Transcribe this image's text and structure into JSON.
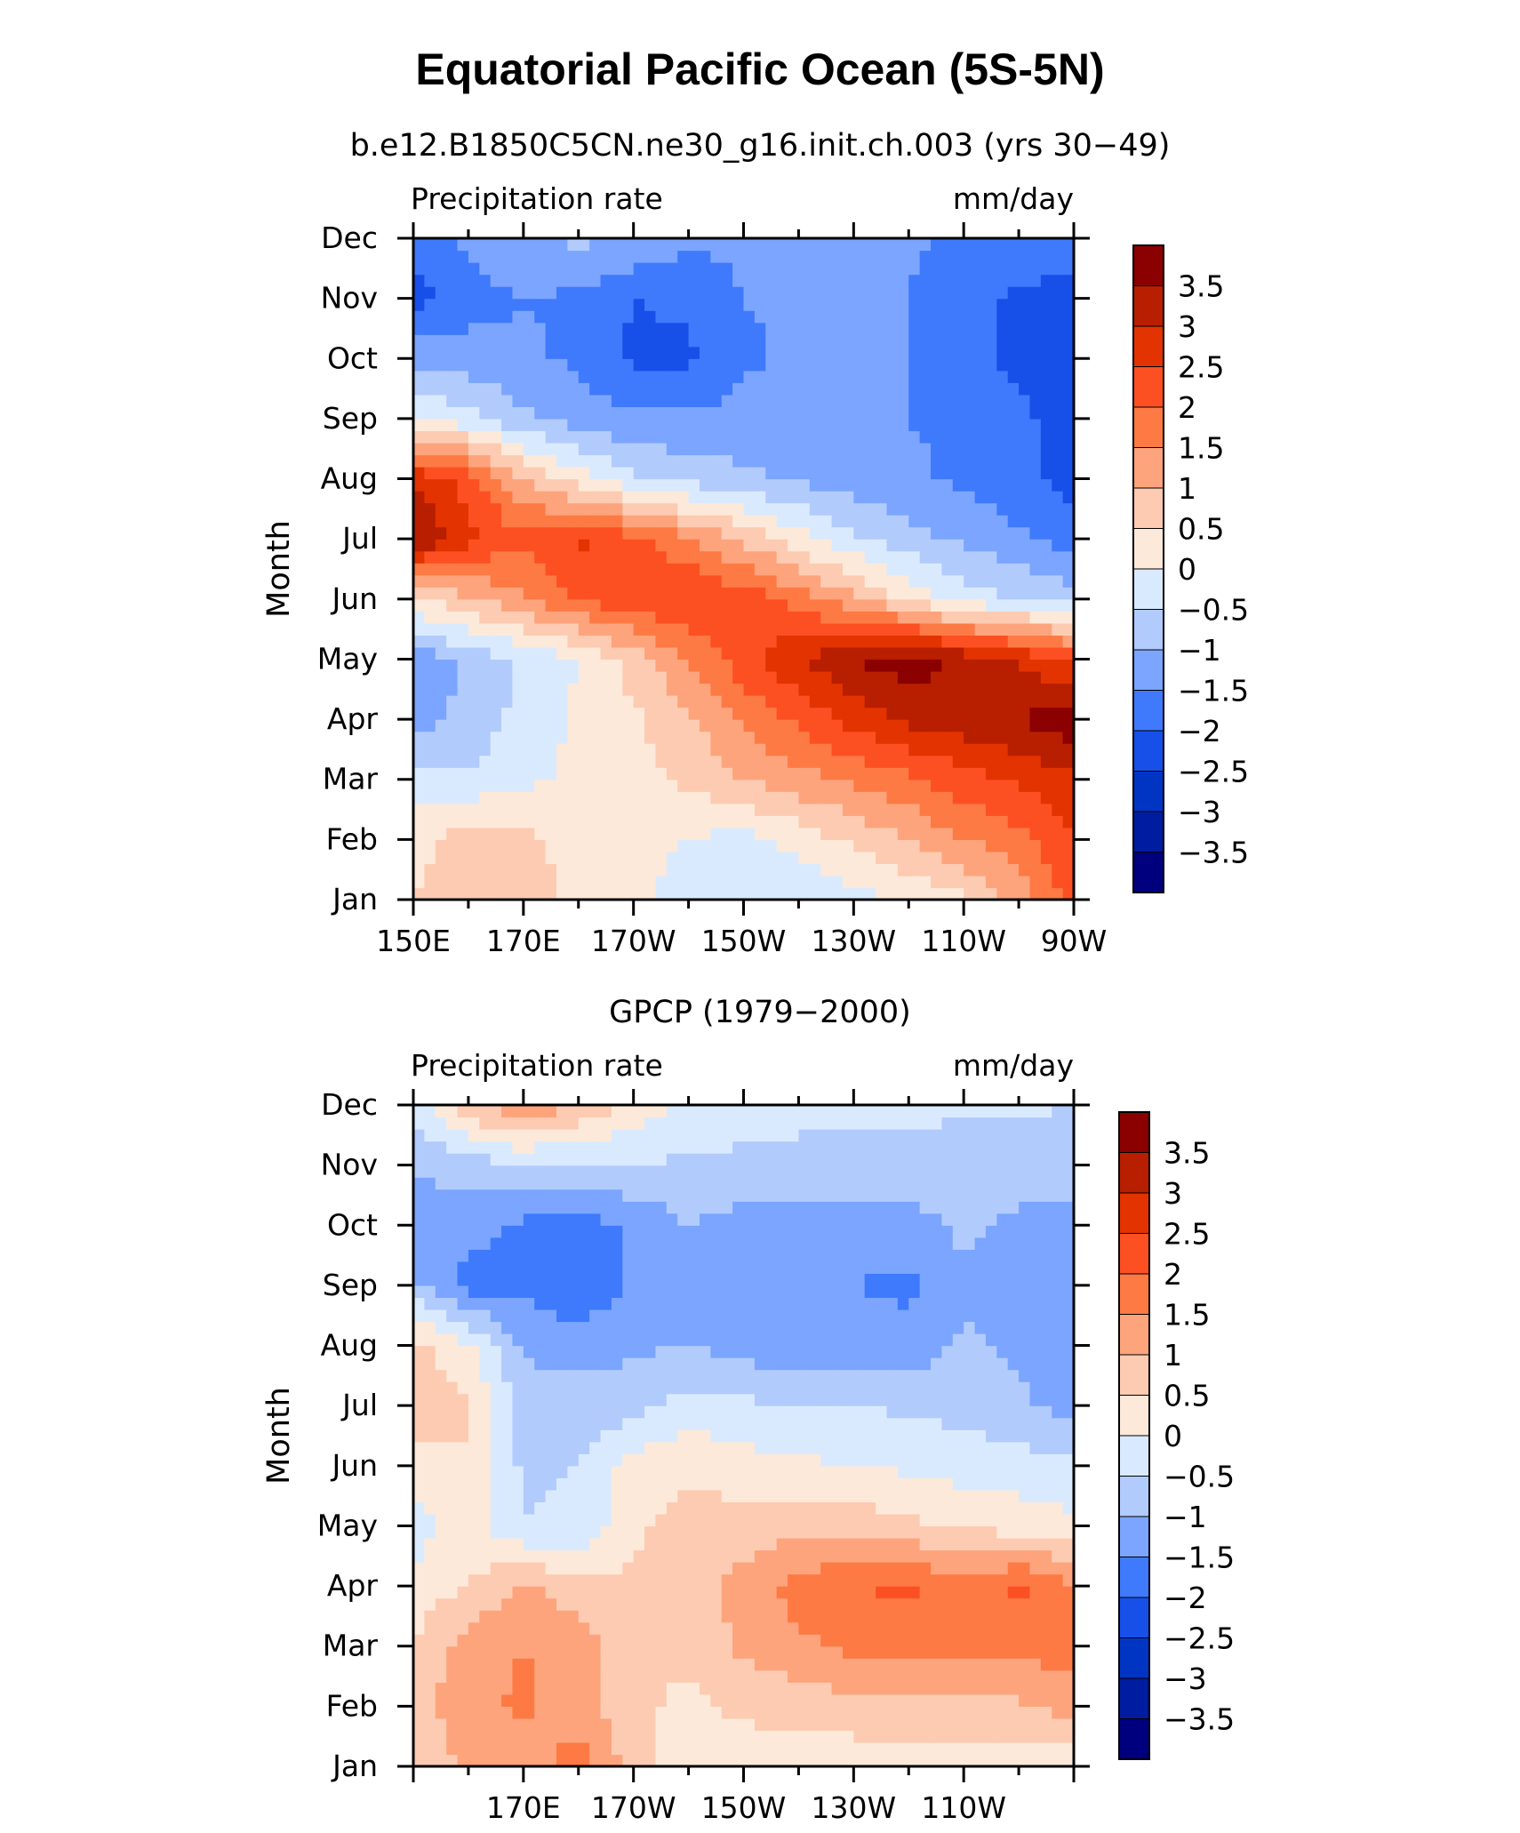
{
  "title": "Equatorial Pacific Ocean (5S-5N)",
  "colors": {
    "levels": [
      "#00007f",
      "#001ca0",
      "#0035c4",
      "#1650e8",
      "#3f7afd",
      "#7ba5fe",
      "#b2cbfd",
      "#daeafe",
      "#fde9d9",
      "#fdcbb2",
      "#fda47c",
      "#fd7a45",
      "#fd5022",
      "#e23300",
      "#b81e00",
      "#8b0000"
    ],
    "axis": "#000000"
  },
  "chart_data": [
    {
      "type": "heatmap",
      "subtitle": "b.e12.B1850C5CN.ne30_g16.init.ch.003 (yrs 30−49)",
      "left_label": "Precipitation rate",
      "right_label": "mm/day",
      "ylabel": "Month",
      "x_ticks": [
        "150E",
        "170E",
        "170W",
        "150W",
        "130W",
        "110W",
        "90W"
      ],
      "y_ticks": [
        "Jan",
        "Feb",
        "Mar",
        "Apr",
        "May",
        "Jun",
        "Jul",
        "Aug",
        "Sep",
        "Oct",
        "Nov",
        "Dec"
      ],
      "legend_labels": [
        "3.5",
        "3",
        "2.5",
        "2",
        "1.5",
        "1",
        "0.5",
        "0",
        "−0.5",
        "−1",
        "−1.5",
        "−2",
        "−2.5",
        "−3",
        "−3.5"
      ],
      "xrange": [
        150,
        270
      ],
      "x": [
        150,
        160,
        170,
        180,
        190,
        200,
        210,
        220,
        230,
        240,
        250,
        260,
        270
      ],
      "y": [
        "Jan",
        "Feb",
        "Mar",
        "Apr",
        "May",
        "Jun",
        "Jul",
        "Aug",
        "Sep",
        "Oct",
        "Nov",
        "Dec"
      ],
      "z": [
        [
          0.5,
          0.8,
          0.9,
          0.3,
          0.1,
          -0.2,
          -0.5,
          -0.4,
          -0.2,
          0.1,
          0.4,
          1.2,
          2.2
        ],
        [
          0.3,
          0.8,
          0.6,
          0.3,
          0.1,
          0.0,
          -0.2,
          0.2,
          0.6,
          1.0,
          1.5,
          1.8,
          2.5
        ],
        [
          -0.3,
          -0.4,
          -0.1,
          0.1,
          0.3,
          0.6,
          1.0,
          1.3,
          1.6,
          1.9,
          2.3,
          2.6,
          2.9
        ],
        [
          -1.2,
          -0.9,
          -0.3,
          0.1,
          0.4,
          0.9,
          1.6,
          2.1,
          2.7,
          3.1,
          3.3,
          3.5,
          3.8
        ],
        [
          -1.3,
          -0.9,
          -0.4,
          0.0,
          0.7,
          1.5,
          2.3,
          3.0,
          3.5,
          3.8,
          3.4,
          3.0,
          2.4
        ],
        [
          0.4,
          0.9,
          1.4,
          2.0,
          2.4,
          2.5,
          2.3,
          1.8,
          1.1,
          0.4,
          -0.3,
          -0.5,
          -0.8
        ],
        [
          3.6,
          2.6,
          2.1,
          2.6,
          2.2,
          1.6,
          0.9,
          0.2,
          -0.4,
          -0.8,
          -1.1,
          -1.4,
          -1.7
        ],
        [
          2.9,
          2.3,
          1.0,
          0.2,
          -0.4,
          -0.7,
          -0.9,
          -1.1,
          -1.3,
          -1.4,
          -1.6,
          -1.9,
          -2.2
        ],
        [
          0.0,
          -0.3,
          -0.9,
          -1.2,
          -1.4,
          -1.4,
          -1.3,
          -1.3,
          -1.4,
          -1.5,
          -1.6,
          -1.9,
          -2.2
        ],
        [
          -1.2,
          -1.3,
          -1.4,
          -1.6,
          -2.1,
          -2.1,
          -1.6,
          -1.4,
          -1.4,
          -1.5,
          -1.9,
          -2.1,
          -2.4
        ],
        [
          -2.2,
          -1.7,
          -1.5,
          -1.6,
          -2.0,
          -1.9,
          -1.5,
          -1.4,
          -1.4,
          -1.5,
          -1.9,
          -2.1,
          -2.3
        ],
        [
          -1.7,
          -1.4,
          -1.1,
          -0.9,
          -1.0,
          -1.4,
          -1.4,
          -1.3,
          -1.3,
          -1.4,
          -1.6,
          -1.6,
          -1.5
        ]
      ]
    },
    {
      "type": "heatmap",
      "subtitle": "GPCP (1979−2000)",
      "left_label": "Precipitation rate",
      "right_label": "mm/day",
      "ylabel": "Month",
      "x_ticks": [
        "170E",
        "170W",
        "150W",
        "130W",
        "110W"
      ],
      "y_ticks": [
        "Jan",
        "Feb",
        "Mar",
        "Apr",
        "May",
        "Jun",
        "Jul",
        "Aug",
        "Sep",
        "Oct",
        "Nov",
        "Dec"
      ],
      "legend_labels": [
        "3.5",
        "3",
        "2.5",
        "2",
        "1.5",
        "1",
        "0.5",
        "0",
        "−0.5",
        "−1",
        "−1.5",
        "−2",
        "−2.5",
        "−3",
        "−3.5"
      ],
      "xrange": [
        150,
        270
      ],
      "x": [
        150,
        160,
        170,
        180,
        190,
        200,
        210,
        220,
        230,
        240,
        250,
        260,
        270
      ],
      "y": [
        "Jan",
        "Feb",
        "Mar",
        "Apr",
        "May",
        "Jun",
        "Jul",
        "Aug",
        "Sep",
        "Oct",
        "Nov",
        "Dec"
      ],
      "z": [
        [
          0.6,
          1.1,
          1.2,
          1.8,
          0.7,
          0.2,
          0.2,
          0.2,
          0.2,
          0.1,
          0.1,
          0.1,
          0.2
        ],
        [
          0.8,
          1.3,
          1.6,
          1.2,
          0.6,
          0.4,
          0.6,
          0.7,
          0.8,
          0.9,
          0.9,
          0.9,
          1.2
        ],
        [
          0.5,
          1.3,
          1.5,
          1.3,
          0.5,
          0.6,
          1.1,
          1.4,
          1.6,
          1.7,
          1.6,
          1.7,
          1.7
        ],
        [
          0.2,
          0.5,
          1.1,
          0.7,
          0.6,
          0.8,
          1.2,
          1.7,
          2.0,
          2.1,
          1.7,
          2.1,
          1.6
        ],
        [
          -0.3,
          0.3,
          -0.5,
          -0.4,
          0.4,
          0.7,
          0.7,
          0.8,
          0.8,
          0.6,
          0.4,
          0.3,
          0.1
        ],
        [
          0.4,
          0.4,
          -0.6,
          -0.5,
          0.2,
          0.4,
          0.2,
          0.1,
          0.0,
          -0.1,
          -0.2,
          -0.3,
          -0.4
        ],
        [
          0.6,
          0.6,
          -0.7,
          -0.8,
          -0.7,
          -0.3,
          -0.4,
          -0.5,
          -0.5,
          -0.6,
          -0.7,
          -0.9,
          -1.2
        ],
        [
          0.7,
          0.1,
          -1.1,
          -1.2,
          -1.1,
          -1.0,
          -1.2,
          -1.4,
          -1.4,
          -1.3,
          -0.9,
          -1.1,
          -1.3
        ],
        [
          -0.9,
          -1.7,
          -1.6,
          -2.0,
          -1.4,
          -1.1,
          -1.1,
          -1.5,
          -1.5,
          -1.6,
          -1.1,
          -1.3,
          -1.2
        ],
        [
          -1.2,
          -1.3,
          -1.6,
          -1.8,
          -1.4,
          -1.0,
          -1.2,
          -1.3,
          -1.3,
          -1.2,
          -0.9,
          -1.1,
          -1.2
        ],
        [
          -1.0,
          -0.7,
          -0.6,
          -0.6,
          -0.5,
          -0.6,
          -0.6,
          -0.6,
          -0.7,
          -0.6,
          -0.8,
          -0.8,
          -0.8
        ],
        [
          -0.2,
          0.8,
          1.5,
          1.0,
          0.3,
          -0.1,
          -0.3,
          -0.4,
          -0.4,
          -0.4,
          -0.4,
          -0.4,
          -0.5
        ]
      ]
    }
  ]
}
